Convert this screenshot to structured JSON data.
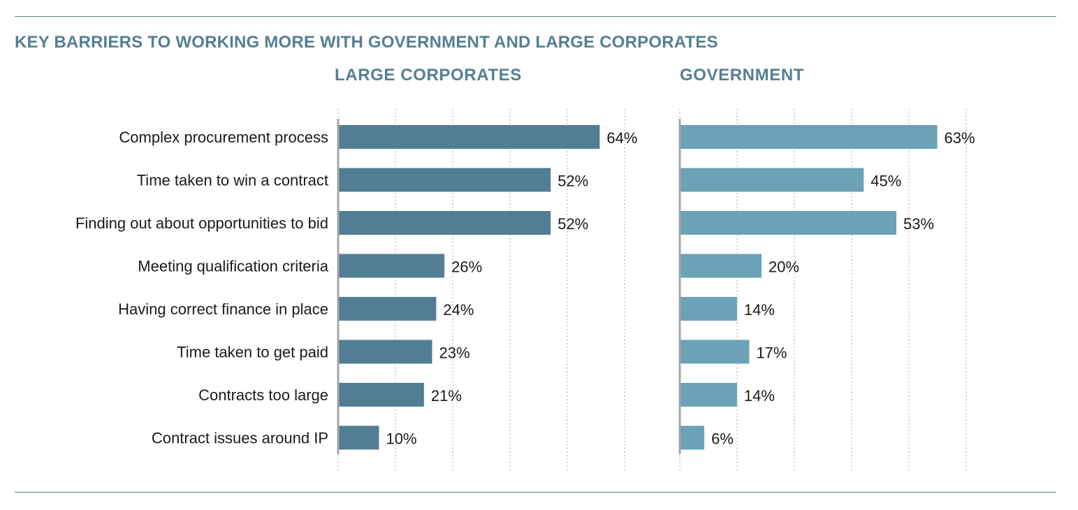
{
  "chart_data": {
    "type": "bar",
    "title": "KEY BARRIERS TO WORKING MORE WITH GOVERNMENT AND LARGE CORPORATES",
    "categories": [
      "Complex procurement process",
      "Time taken to win a contract",
      "Finding out about opportunities to bid",
      "Meeting qualification criteria",
      "Having correct finance in place",
      "Time taken to get paid",
      "Contracts too large",
      "Contract issues around IP"
    ],
    "series": [
      {
        "name": "LARGE CORPORATES",
        "values": [
          64,
          52,
          52,
          26,
          24,
          23,
          21,
          10
        ],
        "labels": [
          "64%",
          "52%",
          "52%",
          "26%",
          "24%",
          "23%",
          "21%",
          "10%"
        ],
        "color": "#527e94"
      },
      {
        "name": "GOVERNMENT",
        "values": [
          63,
          45,
          53,
          20,
          14,
          17,
          14,
          6
        ],
        "labels": [
          "63%",
          "45%",
          "53%",
          "20%",
          "14%",
          "17%",
          "14%",
          "6%"
        ],
        "color": "#6ba2b7"
      }
    ],
    "orientation": "horizontal",
    "xlim": [
      0,
      70
    ],
    "grid": true,
    "grid_style": "dotted vertical"
  }
}
